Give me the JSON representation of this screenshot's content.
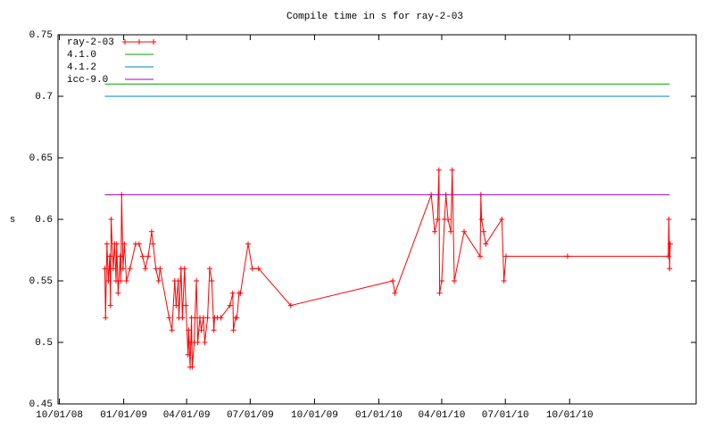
{
  "chart_data": {
    "type": "line",
    "title": "Compile time in s for ray-2-03",
    "y_label": "s",
    "xlim": [
      "2008-09-29",
      "2011-03-31"
    ],
    "xticks": [
      {
        "value": "2008-10-01",
        "label": "10/01/08"
      },
      {
        "value": "2009-01-01",
        "label": "01/01/09"
      },
      {
        "value": "2009-04-01",
        "label": "04/01/09"
      },
      {
        "value": "2009-07-01",
        "label": "07/01/09"
      },
      {
        "value": "2009-10-01",
        "label": "10/01/09"
      },
      {
        "value": "2010-01-01",
        "label": "01/01/10"
      },
      {
        "value": "2010-04-01",
        "label": "04/01/10"
      },
      {
        "value": "2010-07-01",
        "label": "07/01/10"
      },
      {
        "value": "2010-10-01",
        "label": "10/01/10"
      }
    ],
    "ylim": [
      0.45,
      0.75
    ],
    "yticks": [
      0.45,
      0.5,
      0.55,
      0.6,
      0.65,
      0.7,
      0.75
    ],
    "legend": "top-left",
    "series": [
      {
        "name": "ray-2-03",
        "color": "#ff0000",
        "marker": "+",
        "x": [
          "2008-12-05",
          "2008-12-06",
          "2008-12-08",
          "2008-12-10",
          "2008-12-12",
          "2008-12-13",
          "2008-12-14",
          "2008-12-17",
          "2008-12-19",
          "2008-12-21",
          "2008-12-22",
          "2008-12-24",
          "2008-12-27",
          "2008-12-28",
          "2008-12-29",
          "2008-12-31",
          "2009-01-02",
          "2009-01-05",
          "2009-01-10",
          "2009-01-18",
          "2009-01-23",
          "2009-01-28",
          "2009-02-01",
          "2009-02-05",
          "2009-02-10",
          "2009-02-12",
          "2009-02-16",
          "2009-02-20",
          "2009-02-22",
          "2009-03-07",
          "2009-03-11",
          "2009-03-15",
          "2009-03-17",
          "2009-03-20",
          "2009-03-21",
          "2009-03-24",
          "2009-03-26",
          "2009-03-29",
          "2009-03-31",
          "2009-04-03",
          "2009-04-04",
          "2009-04-06",
          "2009-04-07",
          "2009-04-08",
          "2009-04-09",
          "2009-04-12",
          "2009-04-13",
          "2009-04-15",
          "2009-04-17",
          "2009-04-20",
          "2009-04-22",
          "2009-04-25",
          "2009-04-27",
          "2009-05-01",
          "2009-05-04",
          "2009-05-07",
          "2009-05-10",
          "2009-05-11",
          "2009-05-15",
          "2009-05-20",
          "2009-06-02",
          "2009-06-06",
          "2009-06-07",
          "2009-06-10",
          "2009-06-12",
          "2009-06-15",
          "2009-06-17",
          "2009-06-28",
          "2009-07-04",
          "2009-07-13",
          "2009-08-28",
          "2010-01-21",
          "2010-01-24",
          "2010-03-17",
          "2010-03-22",
          "2010-03-26",
          "2010-03-28",
          "2010-03-29",
          "2010-04-01",
          "2010-04-05",
          "2010-04-07",
          "2010-04-10",
          "2010-04-14",
          "2010-04-16",
          "2010-04-19",
          "2010-05-03",
          "2010-05-26",
          "2010-05-27",
          "2010-05-28",
          "2010-05-31",
          "2010-06-03",
          "2010-06-26",
          "2010-06-29",
          "2010-07-02",
          "2010-09-28",
          "2011-02-19",
          "2011-02-20",
          "2011-02-21",
          "2011-02-22"
        ],
        "values": [
          0.56,
          0.52,
          0.58,
          0.55,
          0.57,
          0.53,
          0.6,
          0.56,
          0.58,
          0.55,
          0.58,
          0.54,
          0.57,
          0.55,
          0.62,
          0.56,
          0.58,
          0.55,
          0.56,
          0.58,
          0.58,
          0.57,
          0.56,
          0.57,
          0.59,
          0.58,
          0.56,
          0.55,
          0.56,
          0.52,
          0.51,
          0.55,
          0.53,
          0.55,
          0.52,
          0.56,
          0.52,
          0.56,
          0.53,
          0.49,
          0.51,
          0.48,
          0.5,
          0.52,
          0.48,
          0.5,
          0.52,
          0.55,
          0.5,
          0.52,
          0.51,
          0.52,
          0.5,
          0.52,
          0.56,
          0.55,
          0.51,
          0.52,
          0.52,
          0.52,
          0.53,
          0.54,
          0.51,
          0.52,
          0.52,
          0.54,
          0.54,
          0.58,
          0.56,
          0.56,
          0.53,
          0.55,
          0.54,
          0.62,
          0.59,
          0.6,
          0.64,
          0.54,
          0.55,
          0.6,
          0.62,
          0.6,
          0.59,
          0.64,
          0.55,
          0.59,
          0.57,
          0.62,
          0.6,
          0.59,
          0.58,
          0.6,
          0.55,
          0.57,
          0.57,
          0.57,
          0.6,
          0.56,
          0.58
        ]
      },
      {
        "name": "4.1.0",
        "color": "#00a000",
        "x": [
          "2008-12-05",
          "2011-02-21"
        ],
        "values": [
          0.71,
          0.71
        ]
      },
      {
        "name": "4.1.2",
        "color": "#0080c0",
        "x": [
          "2008-12-05",
          "2011-02-21"
        ],
        "values": [
          0.7,
          0.7
        ]
      },
      {
        "name": "icc-9.0",
        "color": "#a000c0",
        "x": [
          "2008-12-05",
          "2011-02-21"
        ],
        "values": [
          0.62,
          0.62
        ]
      }
    ]
  }
}
